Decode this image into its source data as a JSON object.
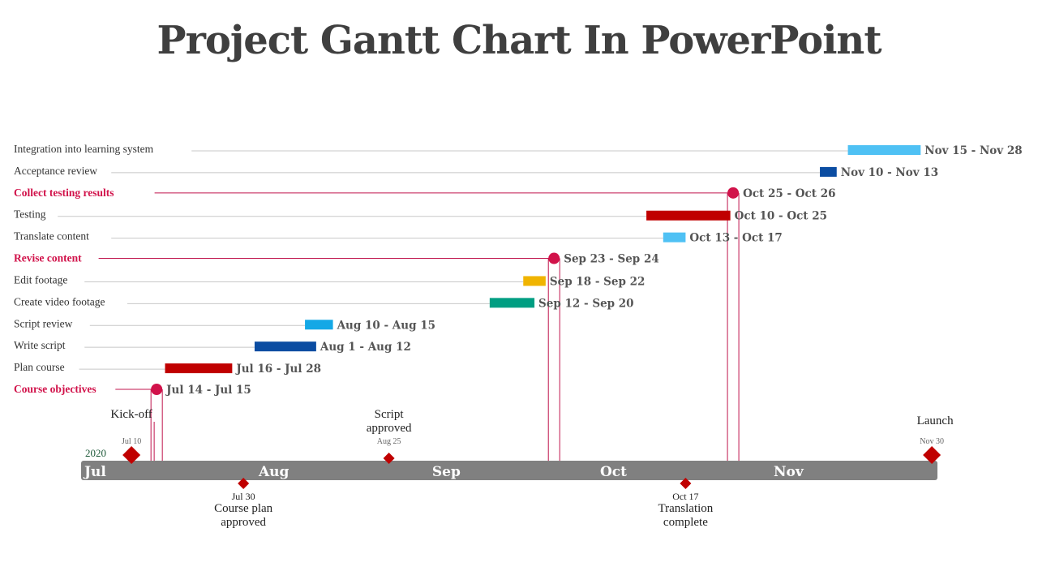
{
  "title": "Project Gantt Chart In PowerPoint",
  "chart_data": {
    "type": "gantt",
    "year": "2020",
    "months": [
      "Jul",
      "Aug",
      "Sep",
      "Oct",
      "Nov"
    ],
    "tasks": [
      {
        "name": "Integration into learning system",
        "start": "2020-11-15",
        "end": "2020-11-28",
        "label": "Nov 15 - Nov 28",
        "color": "#4fc1f4",
        "milestone": false
      },
      {
        "name": "Acceptance review",
        "start": "2020-11-10",
        "end": "2020-11-13",
        "label": "Nov 10 - Nov 13",
        "color": "#0b4da2",
        "milestone": false
      },
      {
        "name": "Collect testing  results",
        "start": "2020-10-25",
        "end": "2020-10-26",
        "label": "Oct 25 - Oct 26",
        "color": "#d1124a",
        "milestone": true
      },
      {
        "name": "Testing",
        "start": "2020-10-10",
        "end": "2020-10-25",
        "label": "Oct 10 - Oct 25",
        "color": "#c00000",
        "milestone": false
      },
      {
        "name": "Translate content",
        "start": "2020-10-13",
        "end": "2020-10-17",
        "label": "Oct 13 - Oct 17",
        "color": "#4fc1f4",
        "milestone": false
      },
      {
        "name": "Revise content",
        "start": "2020-09-23",
        "end": "2020-09-24",
        "label": "Sep 23 - Sep 24",
        "color": "#d1124a",
        "milestone": true
      },
      {
        "name": "Edit footage",
        "start": "2020-09-18",
        "end": "2020-09-22",
        "label": "Sep 18 - Sep 22",
        "color": "#f0b400",
        "milestone": false
      },
      {
        "name": "Create video footage",
        "start": "2020-09-12",
        "end": "2020-09-20",
        "label": "Sep 12 - Sep 20",
        "color": "#009e82",
        "milestone": false
      },
      {
        "name": "Script review",
        "start": "2020-08-10",
        "end": "2020-08-15",
        "label": "Aug 10 - Aug 15",
        "color": "#14a8e6",
        "milestone": false
      },
      {
        "name": "Write script",
        "start": "2020-08-01",
        "end": "2020-08-12",
        "label": "Aug 1 - Aug 12",
        "color": "#0b4da2",
        "milestone": false
      },
      {
        "name": "Plan course",
        "start": "2020-07-16",
        "end": "2020-07-28",
        "label": "Jul 16 - Jul 28",
        "color": "#c00000",
        "milestone": false
      },
      {
        "name": "Course objectives",
        "start": "2020-07-14",
        "end": "2020-07-15",
        "label": "Jul 14 - Jul 15",
        "color": "#d1124a",
        "milestone": true
      }
    ],
    "milestones": [
      {
        "name": "Kick-off",
        "date": "2020-07-10",
        "date_label": "Jul 10",
        "position": "above",
        "large": true
      },
      {
        "name": "Course plan approved",
        "date": "2020-07-30",
        "date_label": "Jul 30",
        "position": "below",
        "large": false
      },
      {
        "name": "Script approved",
        "date": "2020-08-25",
        "date_label": "Aug 25",
        "position": "above",
        "large": false
      },
      {
        "name": "Translation complete",
        "date": "2020-10-17",
        "date_label": "Oct 17",
        "position": "below",
        "large": false
      },
      {
        "name": "Launch",
        "date": "2020-11-30",
        "date_label": "Nov 30",
        "position": "above",
        "large": true
      }
    ],
    "colors": {
      "timeline": "#808080",
      "milestone": "#c00000",
      "connector": "#c0154d",
      "leader": "#c8c8c8"
    }
  }
}
